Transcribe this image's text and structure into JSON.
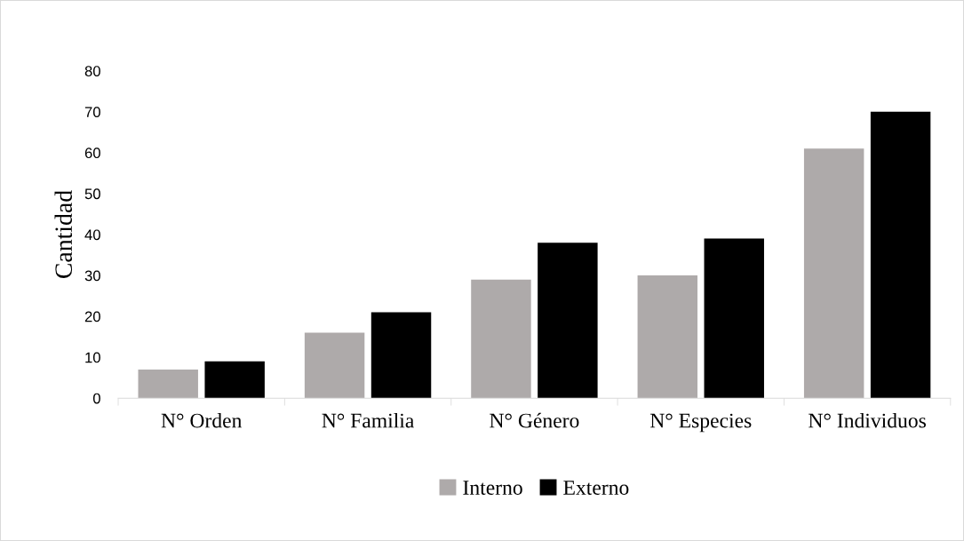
{
  "chart_data": {
    "type": "bar",
    "ylabel": "Cantidad",
    "categories": [
      "N° Orden",
      "N° Familia",
      "N° Género",
      "N° Especies",
      "N° Individuos"
    ],
    "series": [
      {
        "name": "Interno",
        "color": "#aeaaaa",
        "values": [
          7,
          16,
          29,
          30,
          61
        ]
      },
      {
        "name": "Externo",
        "color": "#000000",
        "values": [
          9,
          21,
          38,
          39,
          70
        ]
      }
    ],
    "ylim": [
      0,
      80
    ],
    "yticks": [
      0,
      10,
      20,
      30,
      40,
      50,
      60,
      70,
      80
    ],
    "grid": false,
    "legend": "bottom"
  }
}
